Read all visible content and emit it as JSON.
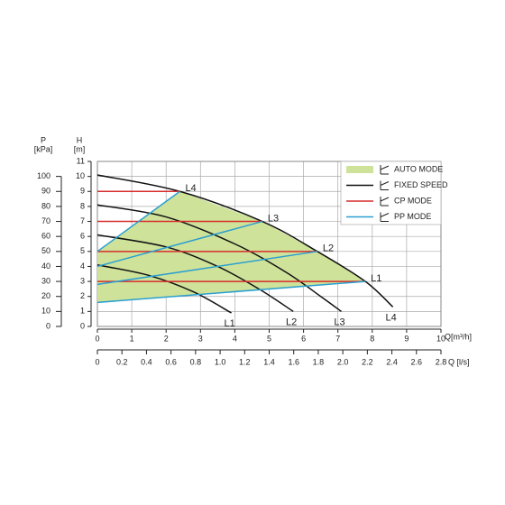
{
  "chart_data": {
    "type": "line",
    "p_label": "P",
    "p_unit": "[kPa]",
    "h_label": "H",
    "h_unit": "[m]",
    "ylim": [
      0,
      11
    ],
    "yticks": [
      0,
      1,
      2,
      3,
      4,
      5,
      6,
      7,
      8,
      9,
      10,
      11
    ],
    "plim": [
      0,
      110
    ],
    "pticks": [
      0,
      10,
      20,
      30,
      40,
      50,
      60,
      70,
      80,
      90,
      100
    ],
    "xlim": [
      0,
      10
    ],
    "xticks": [
      0,
      1,
      2,
      3,
      4,
      5,
      6,
      7,
      8,
      9,
      10
    ],
    "xlabel": "Q[m³/h]",
    "x2lim": [
      0,
      2.8
    ],
    "x2ticks": [
      0,
      0.2,
      0.4,
      0.6,
      0.8,
      {
        "value": 1,
        "label": "1.0"
      },
      1.2,
      1.4,
      1.6,
      1.8,
      {
        "value": 2,
        "label": "2.0"
      },
      2.2,
      2.4,
      2.6,
      2.8
    ],
    "x2label": "Q [l/s]",
    "grid": true,
    "series": [
      {
        "name": "AUTO MODE",
        "color": "#cfe29a",
        "kind": "area",
        "x": [
          0,
          2.4,
          4.8,
          6.4,
          7.8,
          0
        ],
        "values": [
          5,
          9,
          7,
          5,
          3,
          1.6
        ]
      },
      {
        "name": "FIXED SPEED",
        "color": "#111111",
        "kind": "curves",
        "curves": [
          {
            "label": "L1",
            "x": [
              0,
              1.5,
              2.8,
              3.9
            ],
            "values": [
              4.1,
              3.4,
              2.3,
              0.9
            ]
          },
          {
            "label": "L2",
            "x": [
              0,
              2,
              3.5,
              4.7,
              5.7
            ],
            "values": [
              6.1,
              5.3,
              4,
              2.5,
              1
            ]
          },
          {
            "label": "L3",
            "x": [
              0,
              2,
              4,
              5.5,
              6.5,
              7.1
            ],
            "values": [
              8.1,
              7.3,
              5.5,
              3.6,
              2,
              1
            ]
          },
          {
            "label": "L4",
            "x": [
              0,
              2.4,
              4.8,
              6.4,
              7.8,
              8.6
            ],
            "values": [
              10.1,
              9,
              7,
              5,
              3,
              1.3
            ]
          }
        ]
      },
      {
        "name": "CP MODE",
        "color": "#d62c2c",
        "kind": "lines",
        "curves": [
          {
            "x": [
              0,
              7.8
            ],
            "values": [
              3,
              3
            ]
          },
          {
            "x": [
              0,
              6.4
            ],
            "values": [
              5,
              5
            ]
          },
          {
            "x": [
              0,
              4.8
            ],
            "values": [
              7,
              7
            ]
          },
          {
            "x": [
              0,
              2.4
            ],
            "values": [
              9,
              9
            ]
          }
        ]
      },
      {
        "name": "PP MODE",
        "color": "#2a9fd0",
        "kind": "lines",
        "curves": [
          {
            "x": [
              0,
              7.8
            ],
            "values": [
              1.6,
              3
            ]
          },
          {
            "x": [
              0,
              6.4
            ],
            "values": [
              2.8,
              5
            ]
          },
          {
            "x": [
              0,
              4.8
            ],
            "values": [
              4,
              7
            ]
          },
          {
            "x": [
              0,
              2.4
            ],
            "values": [
              5,
              9
            ]
          }
        ]
      }
    ]
  }
}
